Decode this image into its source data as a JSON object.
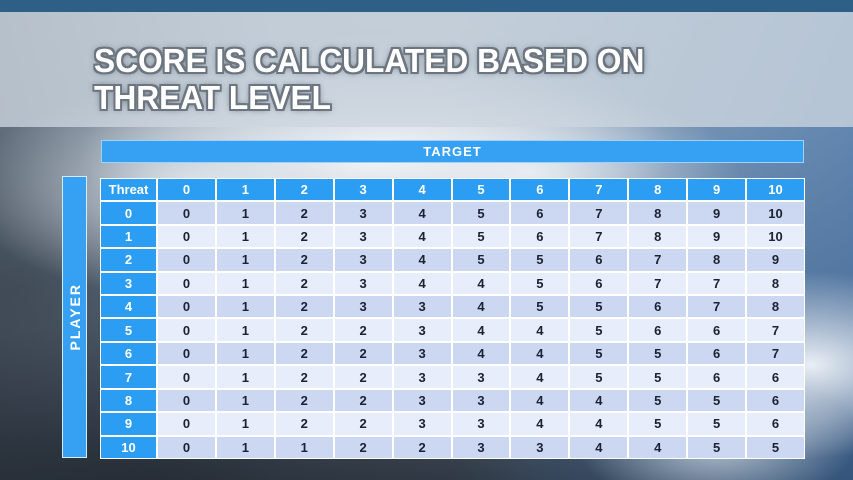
{
  "slide": {
    "title": [
      "SCORE IS CALCULATED BASED ON",
      "THREAT LEVEL"
    ]
  },
  "target": {
    "label": "TARGET"
  },
  "player": {
    "label": "PLAYER"
  },
  "table": {
    "corner_header": "Threat",
    "column_headers": [
      "0",
      "1",
      "2",
      "3",
      "4",
      "5",
      "6",
      "7",
      "8",
      "9",
      "10"
    ],
    "rows": [
      {
        "label": "0",
        "values": [
          "0",
          "1",
          "2",
          "3",
          "4",
          "5",
          "6",
          "7",
          "8",
          "9",
          "10"
        ]
      },
      {
        "label": "1",
        "values": [
          "0",
          "1",
          "2",
          "3",
          "4",
          "5",
          "6",
          "7",
          "8",
          "9",
          "10"
        ]
      },
      {
        "label": "2",
        "values": [
          "0",
          "1",
          "2",
          "3",
          "4",
          "5",
          "5",
          "6",
          "7",
          "8",
          "9"
        ]
      },
      {
        "label": "3",
        "values": [
          "0",
          "1",
          "2",
          "3",
          "4",
          "4",
          "5",
          "6",
          "7",
          "7",
          "8"
        ]
      },
      {
        "label": "4",
        "values": [
          "0",
          "1",
          "2",
          "3",
          "3",
          "4",
          "5",
          "5",
          "6",
          "7",
          "8"
        ]
      },
      {
        "label": "5",
        "values": [
          "0",
          "1",
          "2",
          "2",
          "3",
          "4",
          "4",
          "5",
          "6",
          "6",
          "7"
        ]
      },
      {
        "label": "6",
        "values": [
          "0",
          "1",
          "2",
          "2",
          "3",
          "4",
          "4",
          "5",
          "5",
          "6",
          "7"
        ]
      },
      {
        "label": "7",
        "values": [
          "0",
          "1",
          "2",
          "2",
          "3",
          "3",
          "4",
          "5",
          "5",
          "6",
          "6"
        ]
      },
      {
        "label": "8",
        "values": [
          "0",
          "1",
          "2",
          "2",
          "3",
          "3",
          "4",
          "4",
          "5",
          "5",
          "6"
        ]
      },
      {
        "label": "9",
        "values": [
          "0",
          "1",
          "2",
          "2",
          "3",
          "3",
          "4",
          "4",
          "5",
          "5",
          "6"
        ]
      },
      {
        "label": "10",
        "values": [
          "0",
          "1",
          "1",
          "2",
          "2",
          "3",
          "3",
          "4",
          "4",
          "5",
          "5"
        ]
      }
    ]
  },
  "colors": {
    "accent_blue": "#2b9ef3",
    "top_strip_blue": "#2e5f86",
    "band_dark": "#ccd8f2",
    "band_light": "#e7edfb",
    "cell_text": "#1c2133",
    "grid_line": "#ffffff",
    "title_text": "#ffffff",
    "title_outline": "#6d7680"
  }
}
